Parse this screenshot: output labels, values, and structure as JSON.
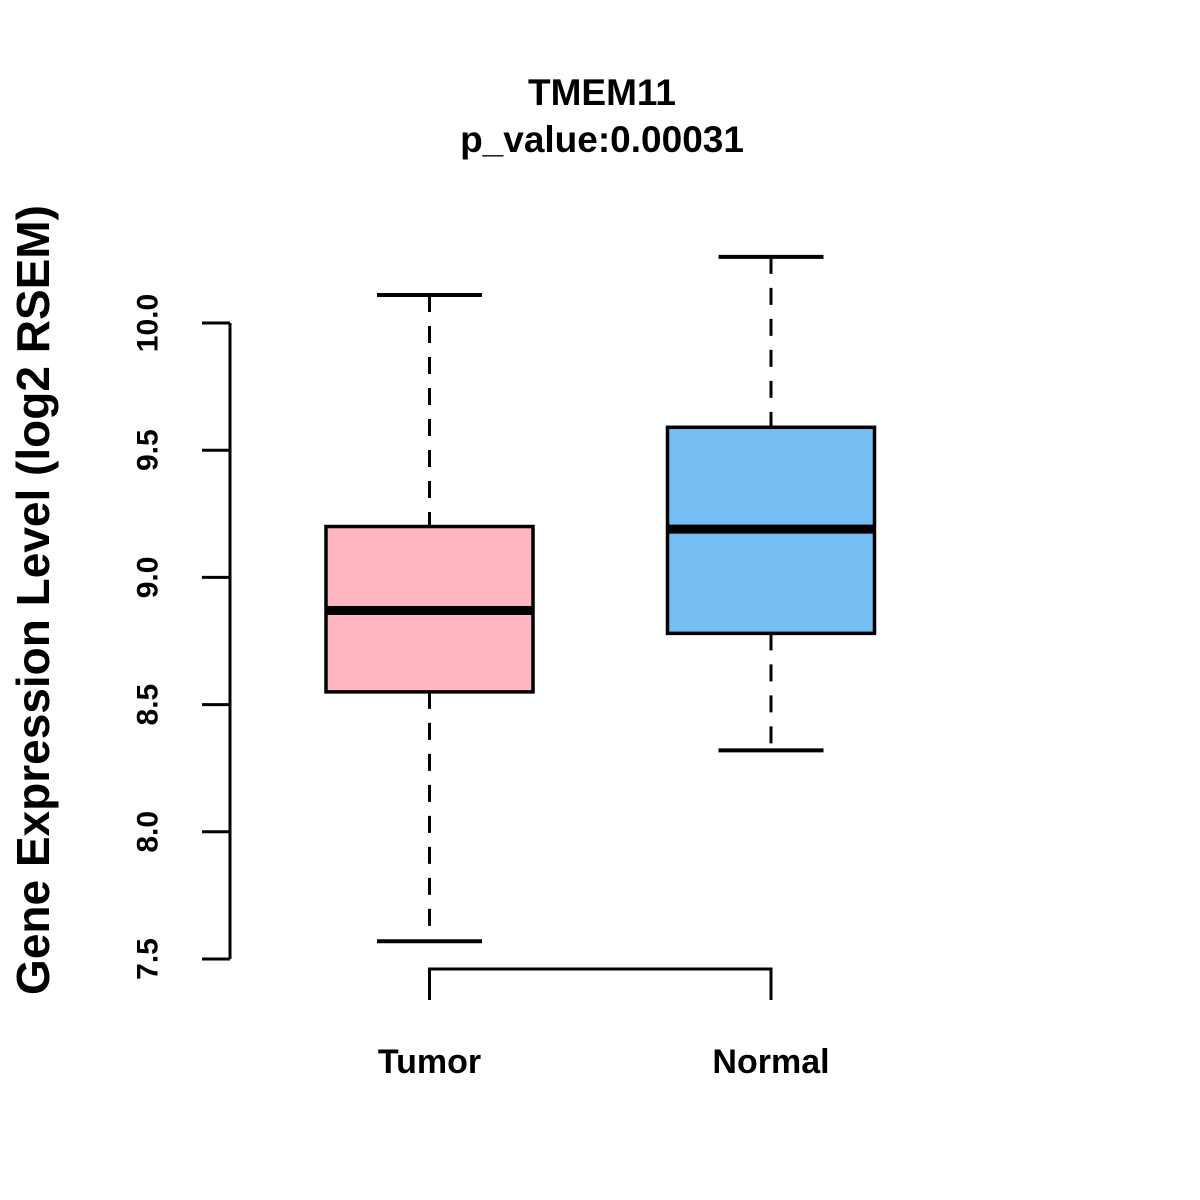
{
  "chart_data": {
    "type": "boxplot",
    "title": "TMEM11",
    "subtitle": "p_value:0.00031",
    "ylabel": "Gene Expression Level (log2 RSEM)",
    "xlabel": "",
    "grid": false,
    "legend": null,
    "yaxis": {
      "min": 7.5,
      "max": 10.0,
      "ticks": [
        "7.5",
        "8.0",
        "8.5",
        "9.0",
        "9.5",
        "10.0"
      ],
      "tick_values": [
        7.5,
        8.0,
        8.5,
        9.0,
        9.5,
        10.0
      ]
    },
    "groups": [
      {
        "label": "Tumor",
        "color": "#FFB6C1",
        "stats": {
          "whisker_low": 7.57,
          "q1": 8.55,
          "median": 8.87,
          "q3": 9.2,
          "whisker_high": 10.11
        }
      },
      {
        "label": "Normal",
        "color": "#74BEF4",
        "stats": {
          "whisker_low": 8.32,
          "q1": 8.78,
          "median": 9.19,
          "q3": 9.59,
          "whisker_high": 10.26
        }
      }
    ],
    "line_color": "#000000"
  }
}
